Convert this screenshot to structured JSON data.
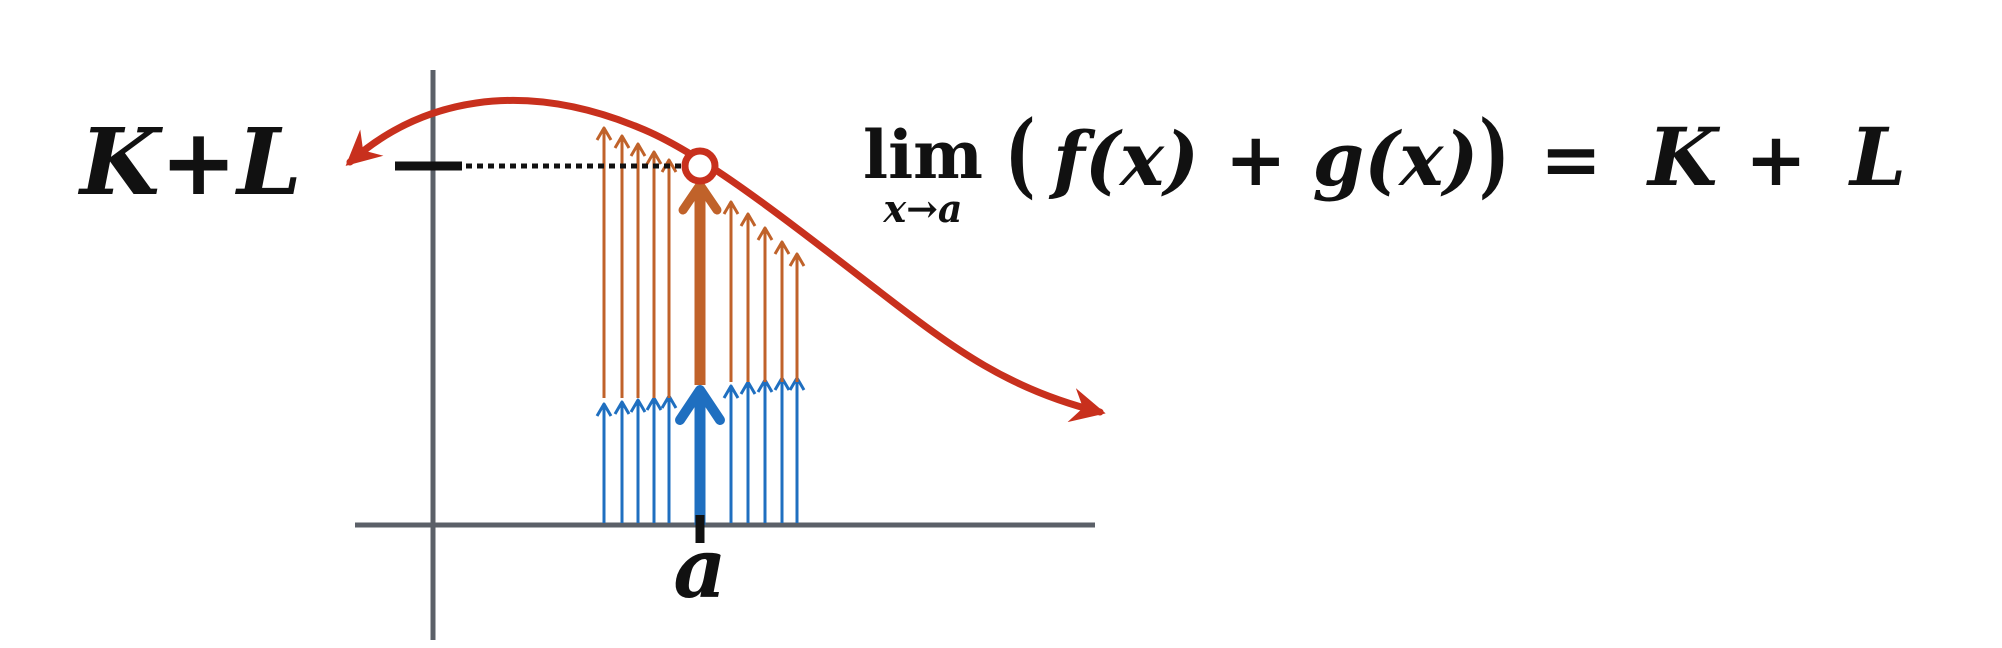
{
  "diagram": {
    "left_label": {
      "k": "K",
      "plus": "+",
      "l": "L"
    },
    "a_label": "a",
    "formula": {
      "lim": "lim",
      "subscript": "x→a",
      "expression": "f(x) + g(x)",
      "equals": "=",
      "k": "K",
      "plus": "+",
      "l": "L"
    },
    "colors": {
      "axis": "#5b6068",
      "curve": "#c8301d",
      "f_arrows": "#c0622a",
      "g_arrows": "#1f6fc0",
      "dashed": "#111111"
    }
  }
}
